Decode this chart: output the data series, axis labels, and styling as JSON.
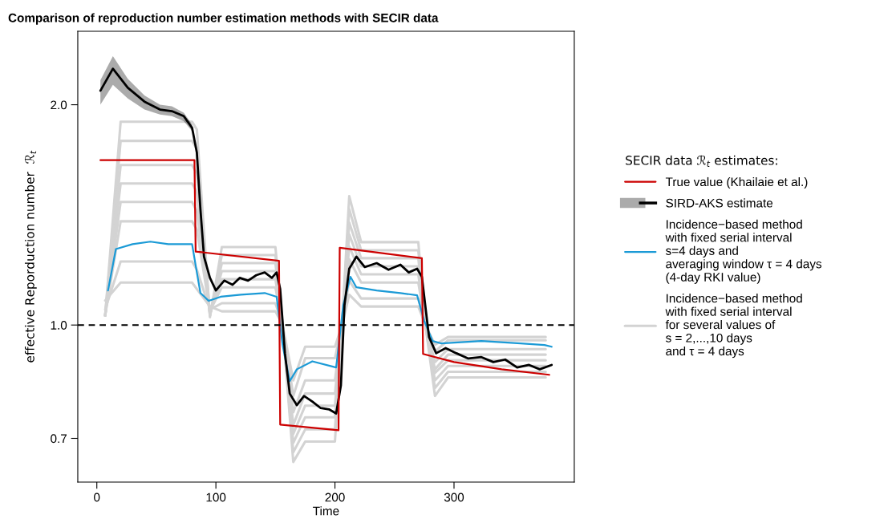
{
  "chart_data": {
    "type": "line",
    "title": "Comparison of reproduction number estimation methods with SECIR data",
    "xlabel": "Time",
    "ylabel": "effective Reporduction number  ℛ$_{t}$",
    "legend_title": "SECIR data ℛ$_{t}$ estimates:",
    "log": "y",
    "xlim": [
      -16,
      401
    ],
    "ylim": [
      0.61,
      2.52
    ],
    "xticks": [
      0,
      100,
      200,
      300
    ],
    "yticks": [
      0.7,
      {
        "value": 1,
        "label": "1.0"
      },
      {
        "value": 2,
        "label": "2.0"
      }
    ],
    "grid": false,
    "legend": "right",
    "line_style": "solid",
    "marker": "none",
    "ref_lines": [
      {
        "axis": "y",
        "value": 1,
        "label": null,
        "color": "#000000",
        "line_style": "dashed"
      }
    ],
    "series": [
      {
        "name": "True value (Khailaie et al.)",
        "color": "#cc0000",
        "x": [
          3,
          82,
          83,
          153,
          154,
          203,
          204,
          273,
          274,
          300,
          340,
          380
        ],
        "values": [
          1.68,
          1.68,
          1.26,
          1.224,
          0.731,
          0.718,
          1.275,
          1.234,
          0.913,
          0.89,
          0.87,
          0.855
        ]
      },
      {
        "name": "SIRD-AKS estimate",
        "color": "#000000",
        "x": [
          3,
          13.5,
          26,
          40,
          53,
          63,
          73,
          80,
          84,
          87,
          90,
          95,
          100,
          107,
          114,
          120,
          127,
          134,
          141,
          147,
          151,
          154,
          158,
          162,
          168,
          174,
          181,
          188,
          195,
          201,
          205,
          208,
          212,
          218,
          225,
          235,
          245,
          255,
          262,
          269,
          273,
          279,
          285,
          293,
          302,
          312,
          323,
          333,
          343,
          353,
          363,
          372,
          382
        ],
        "values": [
          2.09,
          2.24,
          2.11,
          2.02,
          1.97,
          1.96,
          1.93,
          1.86,
          1.72,
          1.44,
          1.24,
          1.16,
          1.115,
          1.15,
          1.135,
          1.16,
          1.15,
          1.17,
          1.18,
          1.16,
          1.18,
          1.12,
          0.915,
          0.806,
          0.777,
          0.8,
          0.786,
          0.77,
          0.767,
          0.757,
          0.827,
          1.065,
          1.194,
          1.24,
          1.2,
          1.215,
          1.19,
          1.209,
          1.18,
          1.194,
          1.164,
          0.963,
          0.915,
          0.93,
          0.915,
          0.9,
          0.904,
          0.89,
          0.897,
          0.875,
          0.882,
          0.87,
          0.882
        ],
        "lower": [
          2.0,
          2.13,
          2.04,
          1.97,
          1.94,
          1.93,
          1.9,
          1.84,
          null,
          null,
          null,
          null,
          null,
          null,
          null,
          null,
          null,
          null,
          null,
          null,
          null,
          null,
          null,
          null,
          null,
          null,
          null,
          null,
          null,
          null,
          null,
          null,
          null,
          null,
          null,
          null,
          null,
          null,
          null,
          null,
          null,
          null,
          null,
          null,
          null,
          null,
          null,
          null,
          null,
          null,
          null,
          null,
          null
        ],
        "upper": [
          2.16,
          2.33,
          2.17,
          2.06,
          2.0,
          1.99,
          1.95,
          1.88,
          null,
          null,
          null,
          null,
          null,
          null,
          null,
          null,
          null,
          null,
          null,
          null,
          null,
          null,
          null,
          null,
          null,
          null,
          null,
          null,
          null,
          null,
          null,
          null,
          null,
          null,
          null,
          null,
          null,
          null,
          null,
          null,
          null,
          null,
          null,
          null,
          null,
          null,
          null,
          null,
          null,
          null,
          null,
          null,
          null
        ]
      },
      {
        "name": "Incidence−based method\nwith fixed serial interval\ns=4 days and\naveraging window τ = 4 days\n(4-day RKI value)",
        "color": "#1b9ad6",
        "x": [
          9.4,
          16,
          30,
          45,
          60,
          80,
          84,
          87,
          94,
          104,
          121,
          141,
          151,
          156,
          162,
          168,
          181,
          201,
          207,
          213,
          218,
          235,
          255,
          269,
          275,
          282,
          289,
          323,
          356,
          376,
          382
        ],
        "values": [
          1.115,
          1.27,
          1.29,
          1.3,
          1.29,
          1.29,
          1.18,
          1.106,
          1.079,
          1.093,
          1.1,
          1.106,
          1.093,
          0.939,
          0.838,
          0.87,
          0.892,
          0.875,
          1.065,
          1.164,
          1.126,
          1.115,
          1.106,
          1.098,
          1.013,
          0.951,
          0.944,
          0.951,
          0.944,
          0.939,
          0.934
        ]
      },
      {
        "name": "Incidence−based method\nwith fixed serial interval\nfor several values of\ns = 2,...,10 days\nand τ = 4 days",
        "color": "#d3d3d3",
        "x": [
          7,
          20,
          80,
          84,
          95,
          105,
          150,
          156,
          165,
          175,
          200,
          206,
          212,
          222,
          270,
          276,
          284,
          295,
          377
        ],
        "values": [
          1.08,
          1.143,
          1.143,
          1.12,
          1.06,
          1.044,
          1.044,
          1.0,
          0.84,
          0.934,
          0.934,
          1.0,
          1.1,
          1.06,
          1.06,
          1.0,
          0.94,
          0.963,
          0.963
        ]
      },
      {
        "color": "#d3d3d3",
        "x": [
          7,
          20,
          80,
          84,
          95,
          105,
          150,
          156,
          165,
          175,
          200,
          206,
          212,
          222,
          270,
          276,
          284,
          295,
          377
        ],
        "values": [
          1.05,
          1.221,
          1.221,
          1.19,
          1.05,
          1.071,
          1.071,
          1.0,
          0.8,
          0.901,
          0.901,
          1.0,
          1.15,
          1.087,
          1.087,
          1.0,
          0.92,
          0.953,
          0.953
        ]
      },
      {
        "color": "#d3d3d3",
        "x": [
          7,
          20,
          80,
          84,
          95,
          105,
          150,
          156,
          165,
          175,
          200,
          206,
          212,
          222,
          270,
          276,
          284,
          295,
          377
        ],
        "values": [
          1.03,
          1.386,
          1.386,
          1.35,
          1.045,
          1.126,
          1.126,
          1.0,
          0.76,
          0.84,
          0.84,
          1.0,
          1.23,
          1.143,
          1.143,
          1.0,
          0.89,
          0.927,
          0.927
        ]
      },
      {
        "color": "#d3d3d3",
        "x": [
          7,
          20,
          80,
          84,
          95,
          105,
          150,
          156,
          165,
          175,
          200,
          206,
          212,
          222,
          270,
          276,
          284,
          295,
          377
        ],
        "values": [
          1.03,
          1.473,
          1.473,
          1.43,
          1.04,
          1.155,
          1.155,
          1.0,
          0.73,
          0.806,
          0.806,
          1.0,
          1.28,
          1.173,
          1.173,
          1.0,
          0.87,
          0.911,
          0.911
        ]
      },
      {
        "color": "#d3d3d3",
        "x": [
          7,
          20,
          80,
          84,
          95,
          105,
          150,
          156,
          165,
          175,
          200,
          206,
          212,
          222,
          270,
          276,
          284,
          295,
          377
        ],
        "values": [
          1.03,
          1.561,
          1.561,
          1.52,
          1.035,
          1.185,
          1.185,
          1.0,
          0.71,
          0.776,
          0.776,
          1.0,
          1.33,
          1.203,
          1.203,
          1.0,
          0.86,
          0.895,
          0.895
        ]
      },
      {
        "color": "#d3d3d3",
        "x": [
          7,
          20,
          80,
          84,
          95,
          105,
          150,
          156,
          165,
          175,
          200,
          206,
          212,
          222,
          270,
          276,
          284,
          295,
          377
        ],
        "values": [
          1.03,
          1.654,
          1.654,
          1.61,
          1.03,
          1.215,
          1.215,
          1.0,
          0.69,
          0.748,
          0.748,
          1.0,
          1.38,
          1.234,
          1.234,
          1.0,
          0.84,
          0.879,
          0.879
        ]
      },
      {
        "color": "#d3d3d3",
        "x": [
          7,
          20,
          80,
          84,
          95,
          105,
          150,
          156,
          165,
          175,
          200,
          206,
          212,
          222,
          270,
          276,
          284,
          295,
          377
        ],
        "values": [
          1.03,
          1.785,
          1.785,
          1.74,
          1.03,
          1.246,
          1.246,
          1.0,
          0.67,
          0.72,
          0.72,
          1.0,
          1.44,
          1.265,
          1.265,
          1.0,
          0.82,
          0.863,
          0.863
        ]
      },
      {
        "color": "#d3d3d3",
        "x": [
          7,
          20,
          80,
          84,
          95,
          105,
          150,
          156,
          165,
          175,
          200,
          206,
          212,
          222,
          270,
          276,
          284,
          295,
          377
        ],
        "values": [
          1.03,
          1.896,
          1.896,
          1.85,
          1.025,
          1.278,
          1.278,
          1.0,
          0.65,
          0.693,
          0.693,
          1.0,
          1.5,
          1.298,
          1.298,
          1.0,
          0.8,
          0.848,
          0.848
        ]
      }
    ]
  }
}
